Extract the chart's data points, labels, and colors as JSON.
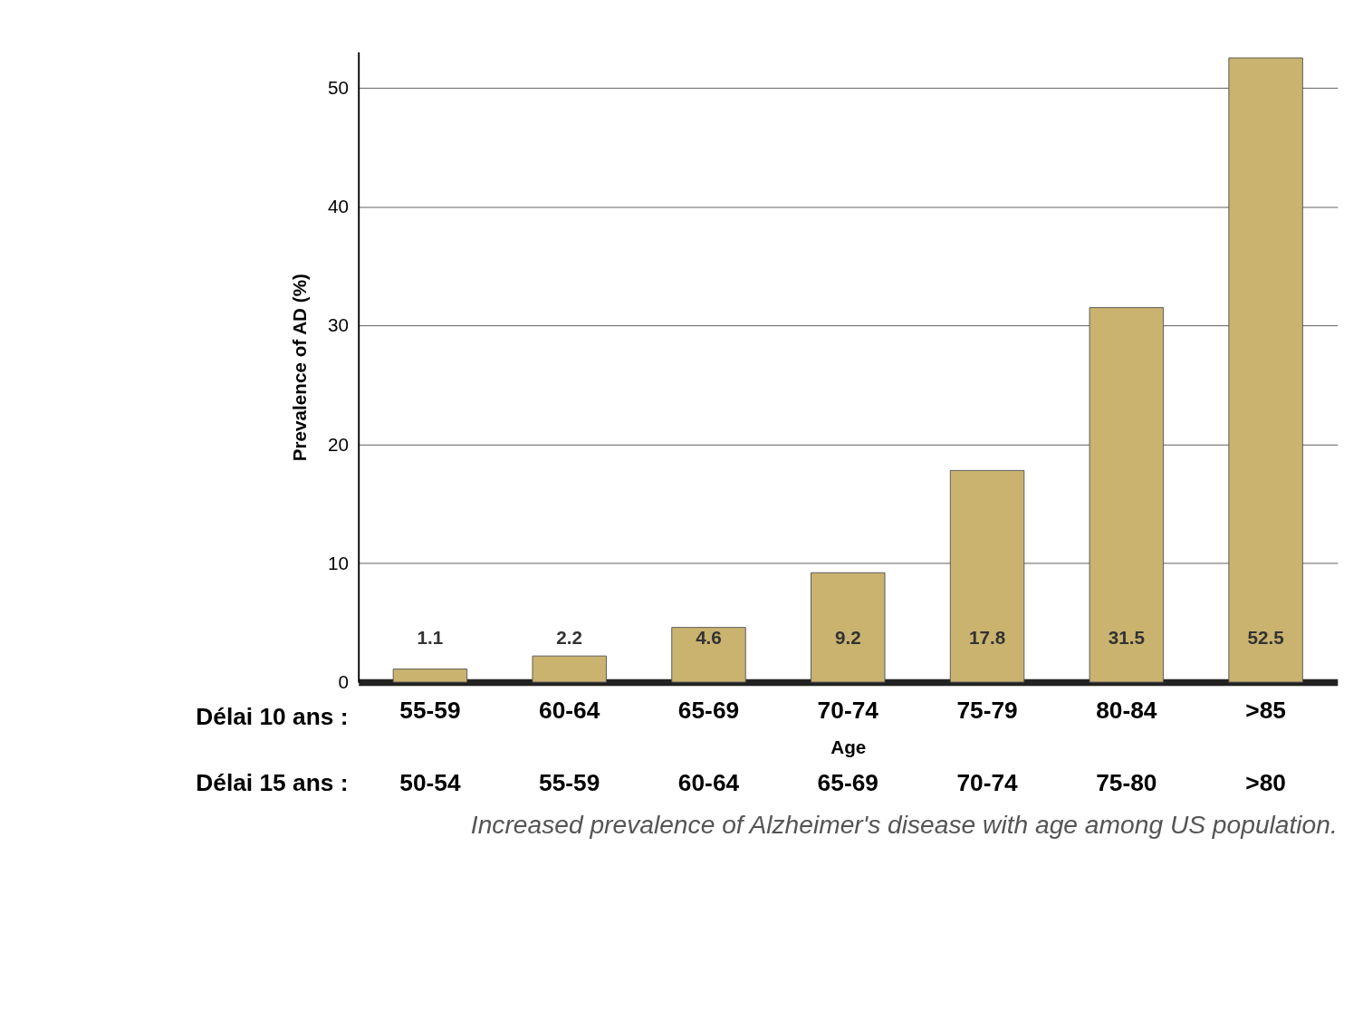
{
  "chart_data": {
    "type": "bar",
    "xlabel": "Age",
    "ylabel": "Prevalence of AD (%)",
    "categories": [
      "55-59",
      "60-64",
      "65-69",
      "70-74",
      "75-79",
      "80-84",
      ">85"
    ],
    "values": [
      1.1,
      2.2,
      4.6,
      9.2,
      17.8,
      31.5,
      52.5
    ],
    "color": "#c9b36f",
    "ylim": [
      0,
      53
    ],
    "yticks": [
      0,
      10,
      20,
      30,
      40,
      50
    ],
    "grid": "y",
    "data_labels": true,
    "annotations": [
      "Délai 10 ans :",
      "Délai 15 ans :",
      "50-54",
      "55-59",
      "60-64",
      "65-69",
      "70-74",
      "75-80",
      ">80",
      "Increased prevalence of Alzheimer's disease with age among US population."
    ]
  }
}
